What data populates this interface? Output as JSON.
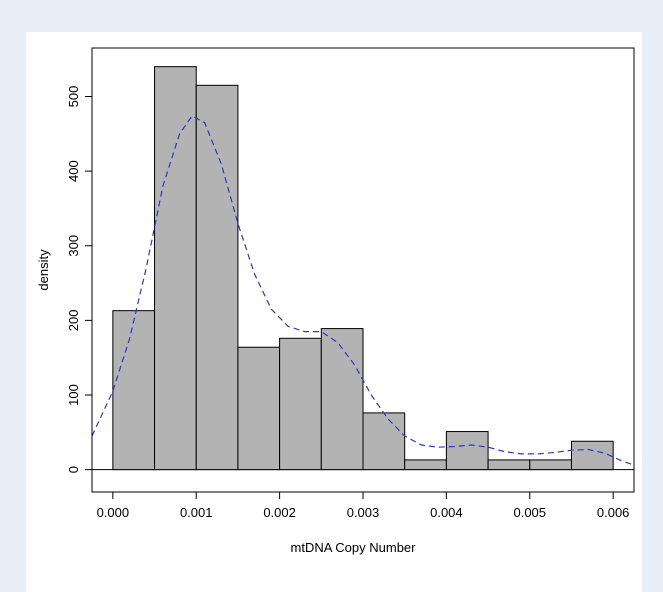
{
  "chart_data": {
    "type": "bar",
    "xlabel": "mtDNA Copy Number",
    "ylabel": "density",
    "xlim": [
      -0.00025,
      0.00625
    ],
    "ylim": [
      -30,
      565
    ],
    "x_ticks": [
      0,
      0.001,
      0.002,
      0.003,
      0.004,
      0.005,
      0.006
    ],
    "x_tick_labels": [
      "0.000",
      "0.001",
      "0.002",
      "0.003",
      "0.004",
      "0.005",
      "0.006"
    ],
    "y_ticks": [
      0,
      100,
      200,
      300,
      400,
      500
    ],
    "y_tick_labels": [
      "0",
      "100",
      "200",
      "300",
      "400",
      "500"
    ],
    "bin_width": 0.0005,
    "bins": [
      {
        "x0": 0.0,
        "x1": 0.0005,
        "value": 213
      },
      {
        "x0": 0.0005,
        "x1": 0.001,
        "value": 540
      },
      {
        "x0": 0.001,
        "x1": 0.0015,
        "value": 515
      },
      {
        "x0": 0.0015,
        "x1": 0.002,
        "value": 164
      },
      {
        "x0": 0.002,
        "x1": 0.0025,
        "value": 176
      },
      {
        "x0": 0.0025,
        "x1": 0.003,
        "value": 189
      },
      {
        "x0": 0.003,
        "x1": 0.0035,
        "value": 76
      },
      {
        "x0": 0.0035,
        "x1": 0.004,
        "value": 13
      },
      {
        "x0": 0.004,
        "x1": 0.0045,
        "value": 51
      },
      {
        "x0": 0.0045,
        "x1": 0.005,
        "value": 13
      },
      {
        "x0": 0.005,
        "x1": 0.0055,
        "value": 13
      },
      {
        "x0": 0.0055,
        "x1": 0.006,
        "value": 38
      }
    ],
    "density_curve": {
      "style": "dashed",
      "color": "#3333cc",
      "points": [
        [
          -0.00025,
          45
        ],
        [
          0.0,
          105
        ],
        [
          0.0002,
          175
        ],
        [
          0.0004,
          270
        ],
        [
          0.0006,
          380
        ],
        [
          0.0008,
          450
        ],
        [
          0.00095,
          474
        ],
        [
          0.0011,
          465
        ],
        [
          0.0013,
          410
        ],
        [
          0.0015,
          330
        ],
        [
          0.0017,
          262
        ],
        [
          0.0019,
          215
        ],
        [
          0.0021,
          192
        ],
        [
          0.0023,
          185
        ],
        [
          0.0025,
          185
        ],
        [
          0.0027,
          170
        ],
        [
          0.0029,
          140
        ],
        [
          0.0031,
          100
        ],
        [
          0.0033,
          68
        ],
        [
          0.0035,
          45
        ],
        [
          0.0037,
          33
        ],
        [
          0.0039,
          30
        ],
        [
          0.0041,
          31
        ],
        [
          0.0043,
          33
        ],
        [
          0.0045,
          30
        ],
        [
          0.0047,
          24
        ],
        [
          0.0049,
          21
        ],
        [
          0.0051,
          21
        ],
        [
          0.0053,
          23
        ],
        [
          0.0055,
          26
        ],
        [
          0.0057,
          27
        ],
        [
          0.0059,
          22
        ],
        [
          0.0061,
          12
        ],
        [
          0.00625,
          6
        ]
      ]
    },
    "bar_fill": "#b3b3b3",
    "bar_stroke": "#000000",
    "grid": false
  }
}
